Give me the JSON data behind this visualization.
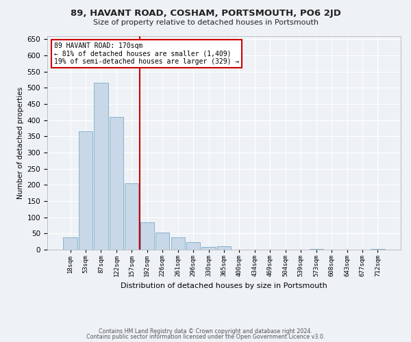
{
  "title": "89, HAVANT ROAD, COSHAM, PORTSMOUTH, PO6 2JD",
  "subtitle": "Size of property relative to detached houses in Portsmouth",
  "xlabel": "Distribution of detached houses by size in Portsmouth",
  "ylabel": "Number of detached properties",
  "bar_color": "#c8d8e8",
  "bar_edge_color": "#7aaac8",
  "vline_color": "#cc0000",
  "annotation_text1": "89 HAVANT ROAD: 170sqm",
  "annotation_text2": "← 81% of detached houses are smaller (1,409)",
  "annotation_text3": "19% of semi-detached houses are larger (329) →",
  "annotation_box_color": "#cc0000",
  "tick_labels": [
    "18sqm",
    "53sqm",
    "87sqm",
    "122sqm",
    "157sqm",
    "192sqm",
    "226sqm",
    "261sqm",
    "296sqm",
    "330sqm",
    "365sqm",
    "400sqm",
    "434sqm",
    "469sqm",
    "504sqm",
    "539sqm",
    "573sqm",
    "608sqm",
    "643sqm",
    "677sqm",
    "712sqm"
  ],
  "bar_heights": [
    38,
    365,
    515,
    410,
    205,
    85,
    53,
    37,
    24,
    8,
    10,
    0,
    0,
    0,
    0,
    0,
    2,
    0,
    0,
    0,
    2
  ],
  "ylim": [
    0,
    660
  ],
  "yticks": [
    0,
    50,
    100,
    150,
    200,
    250,
    300,
    350,
    400,
    450,
    500,
    550,
    600,
    650
  ],
  "footer1": "Contains HM Land Registry data © Crown copyright and database right 2024.",
  "footer2": "Contains public sector information licensed under the Open Government Licence v3.0.",
  "background_color": "#eef2f6",
  "plot_bg_color": "#eef2f6",
  "fig_width": 6.0,
  "fig_height": 5.0,
  "dpi": 100
}
